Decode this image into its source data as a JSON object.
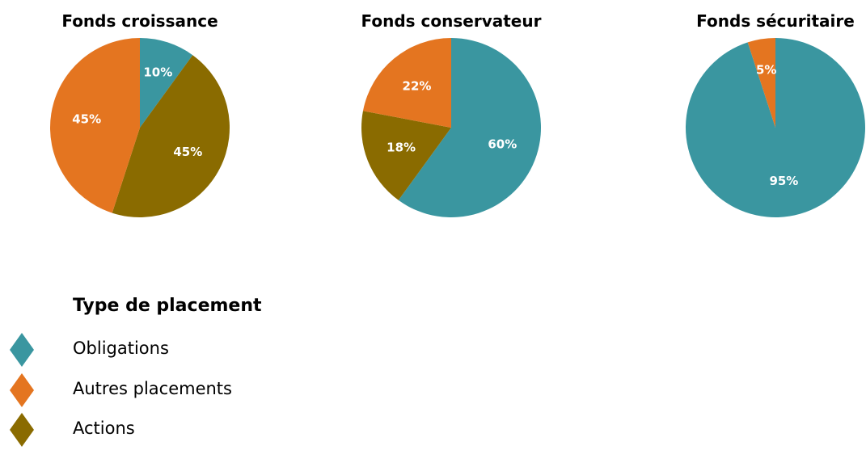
{
  "colors": {
    "Obligations": "#3a96a0",
    "Autres placements": "#e47520",
    "Actions": "#8a6b00"
  },
  "chart_data": [
    {
      "type": "pie",
      "title": "Fonds croissance",
      "slices": [
        {
          "name": "Obligations",
          "value": 10,
          "label": "10%"
        },
        {
          "name": "Actions",
          "value": 45,
          "label": "45%"
        },
        {
          "name": "Autres placements",
          "value": 45,
          "label": "45%"
        }
      ]
    },
    {
      "type": "pie",
      "title": "Fonds conservateur",
      "slices": [
        {
          "name": "Obligations",
          "value": 60,
          "label": "60%"
        },
        {
          "name": "Actions",
          "value": 18,
          "label": "18%"
        },
        {
          "name": "Autres placements",
          "value": 22,
          "label": "22%"
        }
      ]
    },
    {
      "type": "pie",
      "title": "Fonds sécuritaire",
      "slices": [
        {
          "name": "Obligations",
          "value": 95,
          "label": "95%"
        },
        {
          "name": "Autres placements",
          "value": 5,
          "label": "5%"
        }
      ]
    }
  ],
  "legend": {
    "title": "Type de placement",
    "items": [
      {
        "name": "Obligations",
        "label": "Obligations"
      },
      {
        "name": "Autres placements",
        "label": "Autres placements"
      },
      {
        "name": "Actions",
        "label": "Actions"
      }
    ]
  }
}
